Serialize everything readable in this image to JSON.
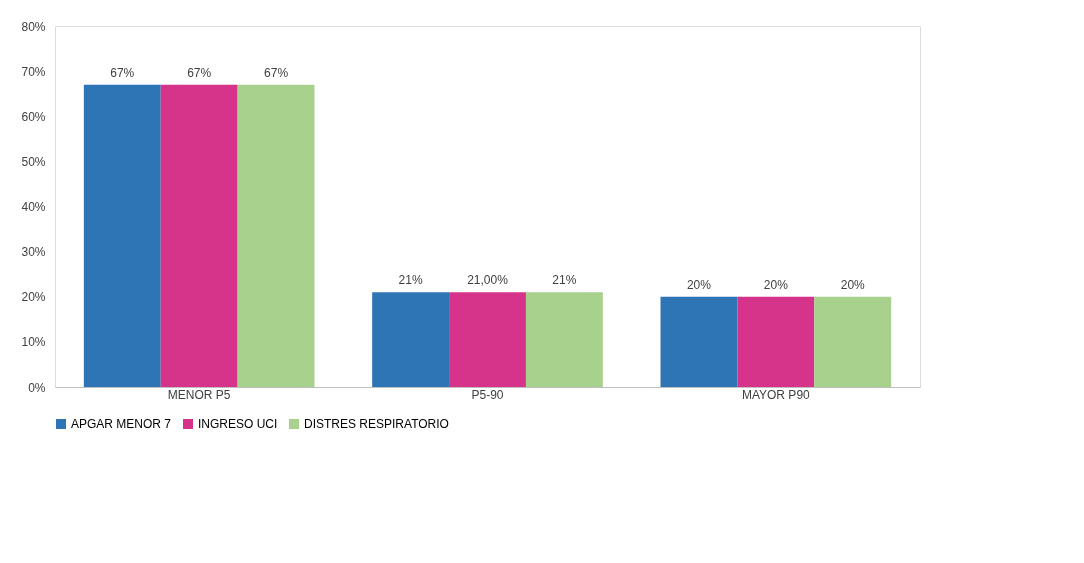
{
  "chart_data": {
    "type": "bar",
    "categories": [
      "MENOR P5",
      "P5-90",
      "MAYOR P90"
    ],
    "series": [
      {
        "name": "APGAR MENOR 7",
        "color": "#2e75b6",
        "values": [
          67,
          21,
          20
        ],
        "value_labels": [
          "67%",
          "21%",
          "20%"
        ]
      },
      {
        "name": "INGRESO UCI",
        "color": "#d6338a",
        "values": [
          67,
          21,
          20
        ],
        "value_labels": [
          "67%",
          "21,00%",
          "20%"
        ]
      },
      {
        "name": "DISTRES RESPIRATORIO",
        "color": "#a9d18e",
        "values": [
          67,
          21,
          20
        ],
        "value_labels": [
          "67%",
          "21%",
          "20%"
        ]
      }
    ],
    "ylim": [
      0,
      80
    ],
    "yticks": [
      {
        "value": 0,
        "label": "0%"
      },
      {
        "value": 10,
        "label": "10%"
      },
      {
        "value": 20,
        "label": "20%"
      },
      {
        "value": 30,
        "label": "30%"
      },
      {
        "value": 40,
        "label": "40%"
      },
      {
        "value": 50,
        "label": "50%"
      },
      {
        "value": 60,
        "label": "60%"
      },
      {
        "value": 70,
        "label": "70%"
      },
      {
        "value": 80,
        "label": "80%"
      }
    ],
    "grid": false,
    "legend": "bottom"
  }
}
